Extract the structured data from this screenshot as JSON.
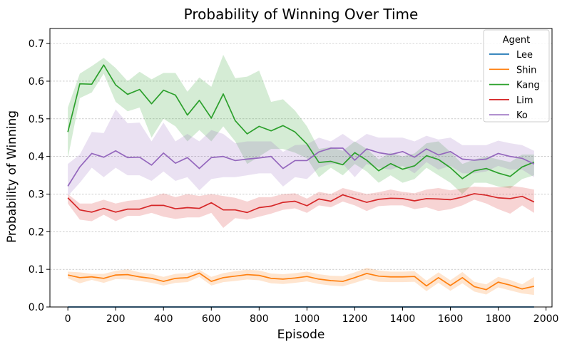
{
  "chart_data": {
    "type": "line",
    "title": "Probability of Winning Over Time",
    "xlabel": "Episode",
    "ylabel": "Probability of Winning",
    "xlim": [
      -75,
      2025
    ],
    "ylim": [
      0,
      0.74
    ],
    "xticks": [
      0,
      200,
      400,
      600,
      800,
      1000,
      1200,
      1400,
      1600,
      1800,
      2000
    ],
    "yticks": [
      0.0,
      0.1,
      0.2,
      0.3,
      0.4,
      0.5,
      0.6,
      0.7
    ],
    "grid": "horizontal-dashed",
    "legend": {
      "title": "Agent",
      "placement": "top-right"
    },
    "x": [
      0,
      50,
      100,
      150,
      200,
      250,
      300,
      350,
      400,
      450,
      500,
      550,
      600,
      650,
      700,
      750,
      800,
      850,
      900,
      950,
      1000,
      1050,
      1100,
      1150,
      1200,
      1250,
      1300,
      1350,
      1400,
      1450,
      1500,
      1550,
      1600,
      1650,
      1700,
      1750,
      1800,
      1850,
      1900,
      1950
    ],
    "series": [
      {
        "name": "Lee",
        "color": "#1f77b4",
        "values": [
          0,
          0,
          0,
          0,
          0,
          0,
          0,
          0,
          0,
          0,
          0,
          0,
          0,
          0,
          0,
          0,
          0,
          0,
          0,
          0,
          0,
          0,
          0,
          0,
          0,
          0,
          0,
          0,
          0,
          0,
          0,
          0,
          0,
          0,
          0,
          0,
          0,
          0,
          0,
          0
        ],
        "lower": [
          0,
          0,
          0,
          0,
          0,
          0,
          0,
          0,
          0,
          0,
          0,
          0,
          0,
          0,
          0,
          0,
          0,
          0,
          0,
          0,
          0,
          0,
          0,
          0,
          0,
          0,
          0,
          0,
          0,
          0,
          0,
          0,
          0,
          0,
          0,
          0,
          0,
          0,
          0,
          0
        ],
        "upper": [
          0,
          0,
          0,
          0,
          0,
          0,
          0,
          0,
          0,
          0,
          0,
          0,
          0,
          0,
          0,
          0,
          0,
          0,
          0,
          0,
          0,
          0,
          0,
          0,
          0,
          0,
          0,
          0,
          0,
          0,
          0,
          0,
          0,
          0,
          0,
          0,
          0,
          0,
          0,
          0
        ]
      },
      {
        "name": "Shin",
        "color": "#ff7f0e",
        "values": [
          0.085,
          0.078,
          0.08,
          0.076,
          0.085,
          0.086,
          0.08,
          0.076,
          0.068,
          0.076,
          0.078,
          0.09,
          0.068,
          0.078,
          0.082,
          0.086,
          0.084,
          0.076,
          0.074,
          0.077,
          0.081,
          0.074,
          0.07,
          0.068,
          0.078,
          0.089,
          0.082,
          0.08,
          0.08,
          0.081,
          0.056,
          0.078,
          0.057,
          0.078,
          0.054,
          0.046,
          0.066,
          0.058,
          0.048,
          0.055
        ],
        "lower": [
          0.076,
          0.063,
          0.072,
          0.064,
          0.074,
          0.073,
          0.069,
          0.064,
          0.057,
          0.064,
          0.066,
          0.08,
          0.057,
          0.066,
          0.069,
          0.073,
          0.071,
          0.063,
          0.061,
          0.064,
          0.068,
          0.061,
          0.057,
          0.055,
          0.064,
          0.074,
          0.067,
          0.066,
          0.066,
          0.067,
          0.042,
          0.064,
          0.043,
          0.063,
          0.041,
          0.033,
          0.052,
          0.044,
          0.036,
          0.032
        ],
        "upper": [
          0.094,
          0.092,
          0.088,
          0.088,
          0.096,
          0.1,
          0.092,
          0.088,
          0.08,
          0.088,
          0.09,
          0.099,
          0.08,
          0.09,
          0.095,
          0.099,
          0.097,
          0.089,
          0.087,
          0.09,
          0.094,
          0.087,
          0.083,
          0.082,
          0.092,
          0.104,
          0.097,
          0.094,
          0.094,
          0.095,
          0.07,
          0.092,
          0.071,
          0.093,
          0.067,
          0.06,
          0.08,
          0.072,
          0.06,
          0.08
        ]
      },
      {
        "name": "Kang",
        "color": "#2ca02c",
        "values": [
          0.465,
          0.593,
          0.592,
          0.643,
          0.59,
          0.565,
          0.578,
          0.54,
          0.576,
          0.563,
          0.51,
          0.549,
          0.502,
          0.566,
          0.495,
          0.46,
          0.48,
          0.468,
          0.482,
          0.465,
          0.433,
          0.384,
          0.387,
          0.378,
          0.41,
          0.39,
          0.362,
          0.381,
          0.366,
          0.375,
          0.402,
          0.392,
          0.37,
          0.341,
          0.362,
          0.368,
          0.356,
          0.347,
          0.372,
          0.385
        ],
        "lower": [
          0.395,
          0.555,
          0.57,
          0.62,
          0.545,
          0.52,
          0.53,
          0.45,
          0.5,
          0.48,
          0.44,
          0.47,
          0.44,
          0.48,
          0.44,
          0.38,
          0.4,
          0.42,
          0.42,
          0.41,
          0.395,
          0.345,
          0.37,
          0.35,
          0.38,
          0.36,
          0.33,
          0.35,
          0.33,
          0.34,
          0.37,
          0.35,
          0.33,
          0.3,
          0.33,
          0.33,
          0.32,
          0.315,
          0.34,
          0.35
        ],
        "upper": [
          0.53,
          0.62,
          0.64,
          0.662,
          0.635,
          0.6,
          0.625,
          0.605,
          0.622,
          0.622,
          0.572,
          0.61,
          0.585,
          0.67,
          0.608,
          0.612,
          0.628,
          0.545,
          0.552,
          0.522,
          0.48,
          0.42,
          0.425,
          0.415,
          0.44,
          0.42,
          0.392,
          0.41,
          0.4,
          0.408,
          0.435,
          0.44,
          0.412,
          0.38,
          0.392,
          0.4,
          0.392,
          0.385,
          0.405,
          0.405
        ]
      },
      {
        "name": "Lim",
        "color": "#d62728",
        "values": [
          0.29,
          0.258,
          0.252,
          0.262,
          0.252,
          0.26,
          0.26,
          0.27,
          0.27,
          0.261,
          0.264,
          0.262,
          0.277,
          0.258,
          0.258,
          0.251,
          0.264,
          0.268,
          0.278,
          0.281,
          0.269,
          0.287,
          0.281,
          0.298,
          0.288,
          0.278,
          0.286,
          0.289,
          0.288,
          0.282,
          0.288,
          0.287,
          0.285,
          0.292,
          0.301,
          0.297,
          0.29,
          0.288,
          0.294,
          0.279
        ],
        "lower": [
          0.275,
          0.232,
          0.228,
          0.245,
          0.228,
          0.242,
          0.242,
          0.25,
          0.24,
          0.234,
          0.238,
          0.238,
          0.25,
          0.21,
          0.236,
          0.232,
          0.24,
          0.248,
          0.258,
          0.262,
          0.25,
          0.27,
          0.265,
          0.28,
          0.27,
          0.255,
          0.268,
          0.27,
          0.27,
          0.26,
          0.265,
          0.255,
          0.26,
          0.27,
          0.285,
          0.275,
          0.26,
          0.248,
          0.27,
          0.25
        ],
        "upper": [
          0.3,
          0.275,
          0.275,
          0.285,
          0.275,
          0.282,
          0.285,
          0.292,
          0.302,
          0.292,
          0.3,
          0.295,
          0.3,
          0.295,
          0.29,
          0.28,
          0.292,
          0.292,
          0.3,
          0.302,
          0.288,
          0.306,
          0.3,
          0.316,
          0.308,
          0.3,
          0.305,
          0.312,
          0.306,
          0.302,
          0.312,
          0.316,
          0.31,
          0.315,
          0.32,
          0.318,
          0.318,
          0.322,
          0.318,
          0.312
        ]
      },
      {
        "name": "Ko",
        "color": "#9467bd",
        "values": [
          0.321,
          0.372,
          0.408,
          0.398,
          0.415,
          0.397,
          0.398,
          0.377,
          0.409,
          0.382,
          0.397,
          0.368,
          0.397,
          0.4,
          0.389,
          0.393,
          0.396,
          0.4,
          0.368,
          0.389,
          0.389,
          0.412,
          0.422,
          0.422,
          0.39,
          0.42,
          0.41,
          0.405,
          0.413,
          0.398,
          0.42,
          0.404,
          0.413,
          0.393,
          0.39,
          0.393,
          0.408,
          0.4,
          0.395,
          0.38
        ],
        "lower": [
          0.295,
          0.33,
          0.37,
          0.345,
          0.37,
          0.35,
          0.35,
          0.335,
          0.36,
          0.335,
          0.345,
          0.31,
          0.34,
          0.345,
          0.345,
          0.35,
          0.355,
          0.355,
          0.32,
          0.345,
          0.34,
          0.37,
          0.38,
          0.38,
          0.345,
          0.38,
          0.37,
          0.365,
          0.375,
          0.355,
          0.385,
          0.365,
          0.375,
          0.355,
          0.355,
          0.36,
          0.375,
          0.365,
          0.365,
          0.345
        ],
        "upper": [
          0.38,
          0.405,
          0.465,
          0.462,
          0.525,
          0.488,
          0.49,
          0.44,
          0.49,
          0.44,
          0.46,
          0.44,
          0.47,
          0.46,
          0.435,
          0.44,
          0.44,
          0.44,
          0.412,
          0.43,
          0.432,
          0.45,
          0.44,
          0.46,
          0.438,
          0.46,
          0.45,
          0.45,
          0.45,
          0.44,
          0.455,
          0.445,
          0.45,
          0.43,
          0.43,
          0.43,
          0.442,
          0.435,
          0.43,
          0.415
        ]
      }
    ]
  }
}
